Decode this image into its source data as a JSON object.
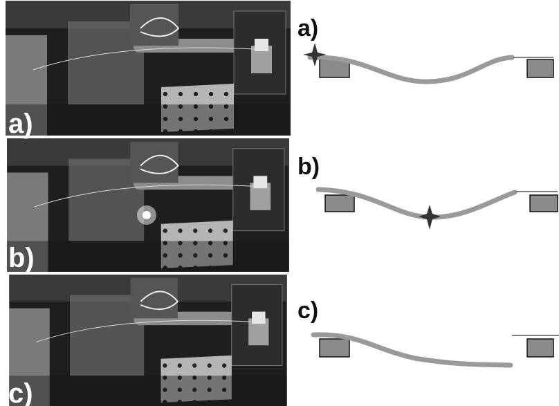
{
  "panels": [
    {
      "photo_label": "a)",
      "diagram_label": "a)"
    },
    {
      "photo_label": "b)",
      "diagram_label": "b)"
    },
    {
      "photo_label": "c)",
      "diagram_label": "c)"
    }
  ]
}
